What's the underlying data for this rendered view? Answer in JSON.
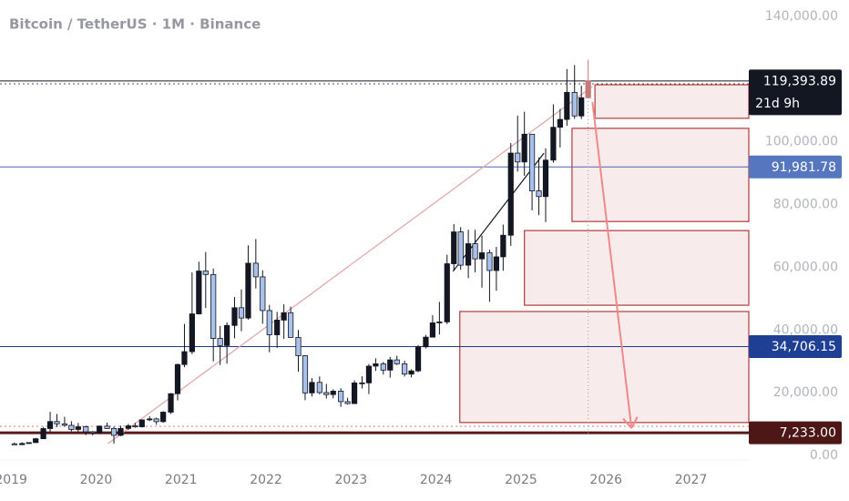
{
  "chart_data": {
    "type": "candlestick",
    "title": "Bitcoin / TetherUS · 1M · Binance",
    "xlim": [
      2018.87,
      2027.68
    ],
    "ylim": [
      -1452,
      145220
    ],
    "xticks": [
      2019,
      2020,
      2021,
      2022,
      2023,
      2024,
      2025,
      2026,
      2027
    ],
    "yticks": [
      {
        "value": 0,
        "label": "0.00"
      },
      {
        "value": 20000,
        "label": "20,000.00"
      },
      {
        "value": 40000,
        "label": "40,000.00"
      },
      {
        "value": 60000,
        "label": "60,000.00"
      },
      {
        "value": 80000,
        "label": "80,000.00"
      },
      {
        "value": 100000,
        "label": "100,000.00"
      },
      {
        "value": 140000,
        "label": "140,000.00"
      }
    ],
    "up_color": "#131722",
    "down_color": "#a8c1ea",
    "live_candle_color": "#c9777a",
    "x": [
      2019.04,
      2019.13,
      2019.21,
      2019.29,
      2019.38,
      2019.46,
      2019.54,
      2019.63,
      2019.71,
      2019.79,
      2019.88,
      2019.96,
      2020.04,
      2020.13,
      2020.21,
      2020.29,
      2020.38,
      2020.46,
      2020.54,
      2020.63,
      2020.71,
      2020.79,
      2020.88,
      2020.96,
      2021.04,
      2021.13,
      2021.21,
      2021.29,
      2021.38,
      2021.46,
      2021.54,
      2021.63,
      2021.71,
      2021.79,
      2021.88,
      2021.96,
      2022.04,
      2022.13,
      2022.21,
      2022.29,
      2022.38,
      2022.46,
      2022.54,
      2022.63,
      2022.71,
      2022.79,
      2022.88,
      2022.96,
      2023.04,
      2023.13,
      2023.21,
      2023.29,
      2023.38,
      2023.46,
      2023.54,
      2023.63,
      2023.71,
      2023.79,
      2023.88,
      2023.96,
      2024.04,
      2024.13,
      2024.21,
      2024.29,
      2024.38,
      2024.46,
      2024.54,
      2024.63,
      2024.71,
      2024.79,
      2024.88,
      2024.96,
      2025.04,
      2025.13,
      2025.21,
      2025.29,
      2025.38,
      2025.46,
      2025.54,
      2025.63,
      2025.71,
      2025.79
    ],
    "candles": [
      [
        3700,
        4140,
        3350,
        3440
      ],
      [
        3440,
        4200,
        3390,
        3820
      ],
      [
        3820,
        4100,
        3700,
        4100
      ],
      [
        4100,
        5600,
        4080,
        5330
      ],
      [
        5330,
        9100,
        5300,
        8570
      ],
      [
        8570,
        13900,
        7500,
        10820
      ],
      [
        10820,
        13200,
        9070,
        10080
      ],
      [
        10080,
        12330,
        9320,
        9600
      ],
      [
        9600,
        10900,
        7700,
        8290
      ],
      [
        8290,
        10370,
        7300,
        9150
      ],
      [
        9150,
        9500,
        6500,
        7540
      ],
      [
        7540,
        7750,
        6430,
        7190
      ],
      [
        7190,
        9580,
        6850,
        9350
      ],
      [
        9350,
        10500,
        8450,
        8600
      ],
      [
        8600,
        9200,
        3780,
        6410
      ],
      [
        6410,
        9470,
        6150,
        8620
      ],
      [
        8620,
        10070,
        8100,
        9450
      ],
      [
        9450,
        10380,
        8830,
        9140
      ],
      [
        9140,
        11450,
        8900,
        11350
      ],
      [
        11350,
        12480,
        10960,
        11650
      ],
      [
        11650,
        12050,
        9820,
        10780
      ],
      [
        10780,
        14100,
        10370,
        13800
      ],
      [
        13800,
        19860,
        13200,
        19700
      ],
      [
        19700,
        29300,
        17570,
        28990
      ],
      [
        28990,
        41950,
        28130,
        33100
      ],
      [
        33100,
        58350,
        32300,
        45140
      ],
      [
        45140,
        61780,
        44950,
        58800
      ],
      [
        58800,
        64850,
        47000,
        57700
      ],
      [
        57700,
        59600,
        30000,
        37300
      ],
      [
        37300,
        41300,
        28800,
        35040
      ],
      [
        35040,
        42450,
        29280,
        41460
      ],
      [
        41460,
        50500,
        37330,
        47100
      ],
      [
        47100,
        52950,
        39600,
        43820
      ],
      [
        43820,
        67000,
        43280,
        61300
      ],
      [
        61300,
        69000,
        53250,
        56950
      ],
      [
        56950,
        59050,
        42000,
        46200
      ],
      [
        46200,
        47990,
        32900,
        38470
      ],
      [
        38470,
        45800,
        34300,
        43160
      ],
      [
        43160,
        48190,
        37150,
        45510
      ],
      [
        45510,
        47440,
        37700,
        37630
      ],
      [
        37630,
        40000,
        26700,
        31800
      ],
      [
        31800,
        31950,
        17620,
        19940
      ],
      [
        19940,
        24670,
        18780,
        23290
      ],
      [
        23290,
        25200,
        19520,
        20050
      ],
      [
        20050,
        22800,
        18150,
        19420
      ],
      [
        19420,
        21080,
        18190,
        20490
      ],
      [
        20490,
        21450,
        15480,
        17160
      ],
      [
        17160,
        18400,
        16260,
        16540
      ],
      [
        16540,
        23960,
        16500,
        23130
      ],
      [
        23130,
        25250,
        21350,
        23140
      ],
      [
        23140,
        29180,
        19550,
        28480
      ],
      [
        28480,
        31000,
        26940,
        29230
      ],
      [
        29230,
        29820,
        25810,
        27210
      ],
      [
        27210,
        31430,
        24800,
        30470
      ],
      [
        30470,
        31800,
        28860,
        29230
      ],
      [
        29230,
        30230,
        25160,
        25940
      ],
      [
        25940,
        27490,
        24900,
        26960
      ],
      [
        26960,
        35200,
        26540,
        34640
      ],
      [
        34640,
        38450,
        34100,
        37720
      ],
      [
        37720,
        44700,
        37620,
        42280
      ],
      [
        42280,
        48970,
        38550,
        42580
      ],
      [
        42580,
        64000,
        41880,
        61130
      ],
      [
        61130,
        73780,
        59000,
        71280
      ],
      [
        71280,
        72800,
        59190,
        60670
      ],
      [
        60670,
        71980,
        56550,
        67520
      ],
      [
        67520,
        71950,
        58400,
        62680
      ],
      [
        62680,
        70080,
        53500,
        64630
      ],
      [
        64630,
        65600,
        49000,
        58970
      ],
      [
        58970,
        66500,
        52550,
        63330
      ],
      [
        63330,
        73620,
        58900,
        70220
      ],
      [
        70220,
        99590,
        66830,
        96410
      ],
      [
        96410,
        108350,
        90500,
        93580
      ],
      [
        93580,
        109590,
        89160,
        102430
      ],
      [
        102430,
        102500,
        78160,
        84350
      ],
      [
        84350,
        95000,
        76600,
        82550
      ],
      [
        82550,
        97900,
        74400,
        94170
      ],
      [
        94170,
        111980,
        93330,
        104640
      ],
      [
        104640,
        110530,
        98200,
        107140
      ],
      [
        107140,
        123220,
        105100,
        115760
      ],
      [
        115760,
        124470,
        107300,
        108250
      ],
      [
        108250,
        117900,
        107270,
        114050
      ],
      [
        114050,
        126200,
        113800,
        119393.89
      ]
    ],
    "levels": [
      {
        "value": 119393.89,
        "label": "119,393.89",
        "sub_label": "21d 9h",
        "color": "#131722",
        "label_color": "#131722"
      },
      {
        "value": 91981.78,
        "label": "91,981.78",
        "color": "#4a67b0",
        "label_color": "#5676c0"
      },
      {
        "value": 34706.15,
        "label": "34,706.15",
        "color": "#1e3a8a",
        "label_color": "#1f3f95"
      },
      {
        "value": 7233,
        "label": "7,233.00",
        "color": "#5a1a1a",
        "label_color": "#4d1717"
      }
    ],
    "dashed_levels": [
      {
        "value": 118490,
        "color": "#555555"
      },
      {
        "value": 9294,
        "color": "#e07a7a"
      }
    ],
    "zone_color": "#b33a3a",
    "zones": [
      {
        "x0": 2025.87,
        "top": 118200,
        "bottom": 107500
      },
      {
        "x0": 2025.6,
        "top": 104300,
        "bottom": 74600
      },
      {
        "x0": 2025.04,
        "top": 71700,
        "bottom": 47900
      },
      {
        "x0": 2024.28,
        "top": 45900,
        "bottom": 10500
      }
    ],
    "trendlines": [
      {
        "x": [
          2020.14,
          2025.84
        ],
        "y": [
          3776,
          117600
        ],
        "color": "#e3a3a3"
      },
      {
        "x": [
          2024.2,
          2025.27
        ],
        "y": [
          58700,
          96400
        ],
        "color": "#131722"
      }
    ],
    "arrow": {
      "x": [
        2025.84,
        2026.3
      ],
      "y": [
        112700,
        8700
      ],
      "color": "#f08a8a"
    },
    "crosshair_x": 2025.79,
    "crosshair_color": "#b58fc0"
  }
}
